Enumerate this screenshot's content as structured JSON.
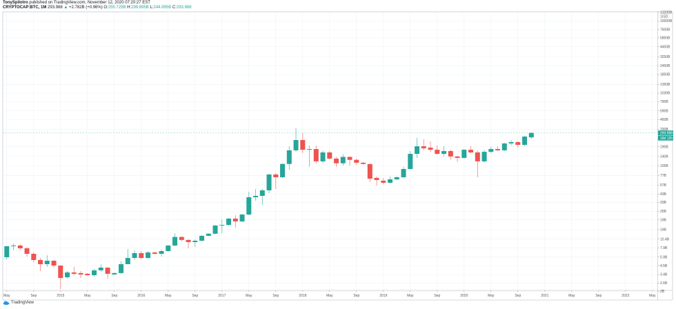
{
  "header": {
    "author": "TonySpilotro",
    "published_text": "published on TradingView.com, November 12, 2020 07:20:27 EST",
    "symbol": "CRYPTOCAP:BTC, 1M",
    "last": "293.988",
    "change_arrow": "▲",
    "change": "+2.782B (+0.96%)",
    "o_label": "O:",
    "o_value": "255.725B",
    "h_label": "H:",
    "h_value": "299.895B",
    "l_label": "L:",
    "l_value": "244.995B",
    "c_label": "C:",
    "c_value": "293.988"
  },
  "price_axis": {
    "currency": "USD",
    "last_price_label": "293.988",
    "countdown_label": "18d 12h",
    "ticks": [
      {
        "value": 13200,
        "label": "13200B"
      },
      {
        "value": 10000,
        "label": "10000B"
      },
      {
        "value": 7600,
        "label": "7600B"
      },
      {
        "value": 5850,
        "label": "5850B"
      },
      {
        "value": 4450,
        "label": "4450B"
      },
      {
        "value": 3250,
        "label": "3250B"
      },
      {
        "value": 2450,
        "label": "2450B"
      },
      {
        "value": 1850,
        "label": "1850B"
      },
      {
        "value": 1350,
        "label": "1350B"
      },
      {
        "value": 1030,
        "label": "1030B"
      },
      {
        "value": 790,
        "label": "790B"
      },
      {
        "value": 590,
        "label": "590B"
      },
      {
        "value": 450,
        "label": "450B"
      },
      {
        "value": 330,
        "label": "330B"
      },
      {
        "value": 190,
        "label": "190B"
      },
      {
        "value": 140,
        "label": "140B"
      },
      {
        "value": 105,
        "label": "105B"
      },
      {
        "value": 77,
        "label": "77B"
      },
      {
        "value": 57,
        "label": "57B"
      },
      {
        "value": 43,
        "label": "43B"
      },
      {
        "value": 33,
        "label": "33B"
      },
      {
        "value": 25,
        "label": "25B"
      },
      {
        "value": 19,
        "label": "19B"
      },
      {
        "value": 14,
        "label": "14B"
      },
      {
        "value": 10.4,
        "label": "10.4B"
      },
      {
        "value": 7.9,
        "label": "7.9B"
      },
      {
        "value": 5.9,
        "label": "5.9B"
      },
      {
        "value": 4.5,
        "label": "4.5B"
      },
      {
        "value": 3.4,
        "label": "3.4B"
      },
      {
        "value": 2.6,
        "label": "2.6B"
      },
      {
        "value": 2,
        "label": "2B"
      }
    ]
  },
  "time_axis": {
    "ticks": [
      {
        "month": "2014-05",
        "label": "May"
      },
      {
        "month": "2014-09",
        "label": "Sep"
      },
      {
        "month": "2015-01",
        "label": "2015"
      },
      {
        "month": "2015-05",
        "label": "May"
      },
      {
        "month": "2015-09",
        "label": "Sep"
      },
      {
        "month": "2016-01",
        "label": "2016"
      },
      {
        "month": "2016-05",
        "label": "May"
      },
      {
        "month": "2016-09",
        "label": "Sep"
      },
      {
        "month": "2017-01",
        "label": "2017"
      },
      {
        "month": "2017-05",
        "label": "May"
      },
      {
        "month": "2017-09",
        "label": "Sep"
      },
      {
        "month": "2018-01",
        "label": "2018"
      },
      {
        "month": "2018-05",
        "label": "May"
      },
      {
        "month": "2018-09",
        "label": "Sep"
      },
      {
        "month": "2019-01",
        "label": "2019"
      },
      {
        "month": "2019-05",
        "label": "May"
      },
      {
        "month": "2019-09",
        "label": "Sep"
      },
      {
        "month": "2020-01",
        "label": "2020"
      },
      {
        "month": "2020-05",
        "label": "May"
      },
      {
        "month": "2020-09",
        "label": "Sep"
      },
      {
        "month": "2021-01",
        "label": "2021"
      },
      {
        "month": "2021-05",
        "label": "May"
      },
      {
        "month": "2021-09",
        "label": "Sep"
      },
      {
        "month": "2022-01",
        "label": "2022"
      },
      {
        "month": "2022-05",
        "label": "May"
      }
    ]
  },
  "colors": {
    "up": "#26a69a",
    "down": "#ef5350",
    "grid": "#eef2f6",
    "text": "#555555"
  },
  "branding": {
    "logo_text": "TradingView"
  },
  "chart_data": {
    "type": "candlestick",
    "scale": "log",
    "grid": true,
    "columns": [
      "month",
      "open",
      "high",
      "low",
      "close"
    ],
    "candles": [
      [
        "2014-05",
        5.86,
        8.3,
        5.48,
        8.29
      ],
      [
        "2014-06",
        8.29,
        9.04,
        7.28,
        8.47
      ],
      [
        "2014-07",
        8.47,
        8.85,
        7.44,
        7.77
      ],
      [
        "2014-08",
        7.77,
        8.11,
        5.98,
        6.53
      ],
      [
        "2014-09",
        6.53,
        6.81,
        5.03,
        5.37
      ],
      [
        "2014-10",
        5.37,
        5.73,
        3.79,
        4.71
      ],
      [
        "2014-11",
        4.71,
        6.25,
        4.32,
        5.25
      ],
      [
        "2014-12",
        5.25,
        5.37,
        4.23,
        4.51
      ],
      [
        "2015-01",
        4.51,
        4.51,
        2.15,
        3.05
      ],
      [
        "2015-02",
        3.12,
        3.79,
        2.99,
        3.63
      ],
      [
        "2015-03",
        3.63,
        4.32,
        3.33,
        3.48
      ],
      [
        "2015-04",
        3.56,
        3.79,
        3.05,
        3.41
      ],
      [
        "2015-05",
        3.48,
        3.56,
        3.3,
        3.33
      ],
      [
        "2015-06",
        3.33,
        4.05,
        3.19,
        3.88
      ],
      [
        "2015-07",
        3.88,
        4.71,
        3.71,
        4.23
      ],
      [
        "2015-08",
        4.23,
        4.23,
        2.99,
        3.48
      ],
      [
        "2015-09",
        3.41,
        3.63,
        3.37,
        3.56
      ],
      [
        "2015-10",
        3.56,
        5.14,
        3.48,
        4.71
      ],
      [
        "2015-11",
        4.71,
        7.6,
        4.71,
        5.73
      ],
      [
        "2015-12",
        5.73,
        7.28,
        5.37,
        6.67
      ],
      [
        "2016-01",
        6.67,
        7.12,
        5.48,
        5.73
      ],
      [
        "2016-02",
        5.73,
        7.12,
        5.6,
        6.81
      ],
      [
        "2016-03",
        6.81,
        6.96,
        6.38,
        6.53
      ],
      [
        "2016-04",
        6.53,
        7.44,
        5.98,
        7.12
      ],
      [
        "2016-05",
        7.12,
        8.65,
        6.96,
        8.47
      ],
      [
        "2016-06",
        8.47,
        12.5,
        8.29,
        11.1
      ],
      [
        "2016-07",
        11.1,
        11.3,
        9.65,
        10.1
      ],
      [
        "2016-08",
        10.1,
        10.3,
        7.77,
        9.45
      ],
      [
        "2016-09",
        9.45,
        10.3,
        8.11,
        9.86
      ],
      [
        "2016-10",
        9.86,
        11.8,
        9.65,
        11.5
      ],
      [
        "2016-11",
        11.5,
        12.5,
        11.3,
        12.3
      ],
      [
        "2016-12",
        12.3,
        16.2,
        12.0,
        15.9
      ],
      [
        "2017-01",
        15.9,
        19.3,
        12.5,
        16.2
      ],
      [
        "2017-02",
        16.2,
        20.2,
        15.9,
        19.8
      ],
      [
        "2017-03",
        19.8,
        22.0,
        14.9,
        18.1
      ],
      [
        "2017-04",
        18.1,
        23.0,
        17.7,
        22.5
      ],
      [
        "2017-05",
        22.5,
        46.1,
        22.0,
        38.8
      ],
      [
        "2017-06",
        38.8,
        50.3,
        34.8,
        40.5
      ],
      [
        "2017-07",
        40.5,
        50.3,
        30.6,
        48.2
      ],
      [
        "2017-08",
        48.2,
        81.1,
        44.1,
        79.4
      ],
      [
        "2017-09",
        79.4,
        82.9,
        50.3,
        72.8
      ],
      [
        "2017-10",
        72.8,
        113,
        71.3,
        110.6
      ],
      [
        "2017-11",
        110.6,
        193,
        92.4,
        170
      ],
      [
        "2017-12",
        170,
        340,
        162,
        235
      ],
      [
        "2018-01",
        235,
        292,
        155,
        173
      ],
      [
        "2018-02",
        173,
        198,
        101,
        177
      ],
      [
        "2018-03",
        177,
        198,
        113,
        120
      ],
      [
        "2018-04",
        120,
        170,
        113,
        159
      ],
      [
        "2018-05",
        159,
        166,
        128,
        131
      ],
      [
        "2018-06",
        131,
        138,
        101,
        113
      ],
      [
        "2018-07",
        113,
        150,
        105,
        138
      ],
      [
        "2018-08",
        138,
        140,
        105,
        126
      ],
      [
        "2018-09",
        126,
        130,
        108,
        115
      ],
      [
        "2018-10",
        115,
        118,
        108,
        110.6
      ],
      [
        "2018-11",
        110,
        113,
        62.5,
        69.6
      ],
      [
        "2018-12",
        71.3,
        74.5,
        56.1,
        66.7
      ],
      [
        "2019-01",
        65.3,
        71.3,
        58.6,
        61.2
      ],
      [
        "2019-02",
        61.2,
        74.5,
        59.9,
        68.1
      ],
      [
        "2019-03",
        68.1,
        74.5,
        66.7,
        72.8
      ],
      [
        "2019-04",
        72.8,
        101,
        71.3,
        94.4
      ],
      [
        "2019-05",
        94.4,
        166,
        92.4,
        152
      ],
      [
        "2019-06",
        152,
        251,
        134,
        193
      ],
      [
        "2019-07",
        193,
        240,
        170,
        181
      ],
      [
        "2019-08",
        185,
        225,
        162,
        173
      ],
      [
        "2019-09",
        173,
        198,
        149,
        152
      ],
      [
        "2019-10",
        152,
        193,
        141,
        166
      ],
      [
        "2019-11",
        166,
        173,
        126,
        140
      ],
      [
        "2019-12",
        140,
        143,
        118,
        134
      ],
      [
        "2020-01",
        134,
        177,
        130,
        173
      ],
      [
        "2020-02",
        173,
        193,
        155,
        159
      ],
      [
        "2020-03",
        159,
        170,
        72.8,
        120
      ],
      [
        "2020-04",
        120,
        173,
        115,
        162
      ],
      [
        "2020-05",
        162,
        189,
        155,
        177
      ],
      [
        "2020-06",
        177,
        193,
        166,
        170
      ],
      [
        "2020-07",
        170,
        215,
        166,
        211
      ],
      [
        "2020-08",
        211,
        235,
        198,
        220
      ],
      [
        "2020-09",
        220,
        225,
        185,
        202
      ],
      [
        "2020-10",
        202,
        268,
        193,
        262
      ],
      [
        "2020-11",
        255.725,
        299.895,
        244.995,
        293.988
      ]
    ]
  }
}
